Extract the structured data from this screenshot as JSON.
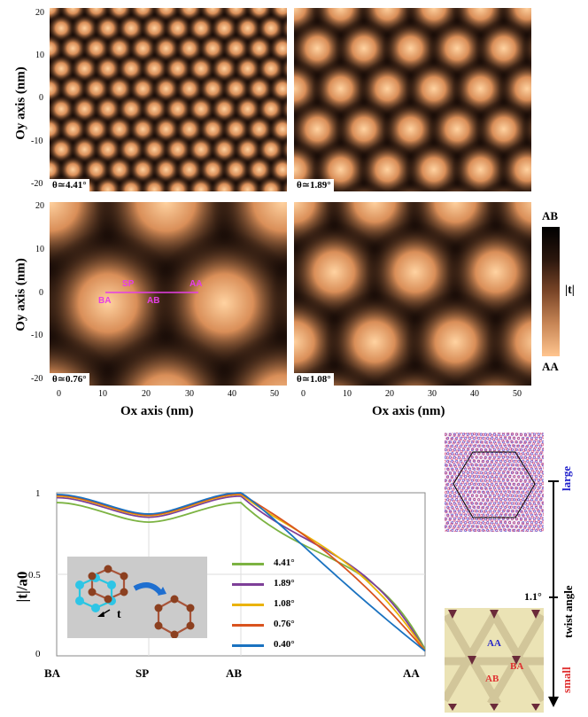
{
  "maps": [
    {
      "id": "m441",
      "label": "θ≃4.41°",
      "period": 5.4
    },
    {
      "id": "m189",
      "label": "θ≃1.89°",
      "period": 10.8
    },
    {
      "id": "m076",
      "label": "θ≃0.76°",
      "period": 27
    },
    {
      "id": "m108",
      "label": "θ≃1.08°",
      "period": 18.7
    }
  ],
  "axes": {
    "oy_title": "Oy axis (nm)",
    "ox_title": "Ox axis (nm)",
    "y_ticks": [
      "20",
      "10",
      "0",
      "-10",
      "-20"
    ],
    "x_ticks": [
      "0",
      "10",
      "20",
      "30",
      "40",
      "50"
    ]
  },
  "path_labels": {
    "sp": "SP",
    "aa": "AA",
    "ba": "BA",
    "ab": "AB"
  },
  "colorbar": {
    "top": "AB",
    "mid": "|t|",
    "bottom": "AA",
    "colors": [
      "#000000",
      "#2a160d",
      "#7a4527",
      "#c88656",
      "#ffc58f"
    ]
  },
  "chart_data": {
    "type": "line",
    "title": "",
    "xlabel": "",
    "ylabel": "|t|/a0",
    "categories": [
      "BA",
      "SP",
      "AB",
      "AA"
    ],
    "ylim": [
      0,
      1
    ],
    "y_ticks": [
      "1",
      "0.5",
      "0"
    ],
    "series": [
      {
        "name": "4.41°",
        "color": "#7cb342",
        "values": [
          0.94,
          0.82,
          0.94,
          0.04
        ]
      },
      {
        "name": "1.89°",
        "color": "#7e3f98",
        "values": [
          0.97,
          0.85,
          0.98,
          0.03
        ]
      },
      {
        "name": "1.08°",
        "color": "#eab308",
        "values": [
          0.98,
          0.86,
          0.99,
          0.03
        ]
      },
      {
        "name": "0.76°",
        "color": "#d9531e",
        "values": [
          0.985,
          0.865,
          0.995,
          0.03
        ]
      },
      {
        "name": "0.40°",
        "color": "#1a72c0",
        "values": [
          0.99,
          0.87,
          1.0,
          0.03
        ]
      }
    ],
    "legend_position": "center",
    "annotation": "t"
  },
  "side": {
    "large": "large",
    "small": "small",
    "twist": "twist angle",
    "angle": "1.1°",
    "aa": "AA",
    "ba": "BA",
    "ab": "AB"
  }
}
